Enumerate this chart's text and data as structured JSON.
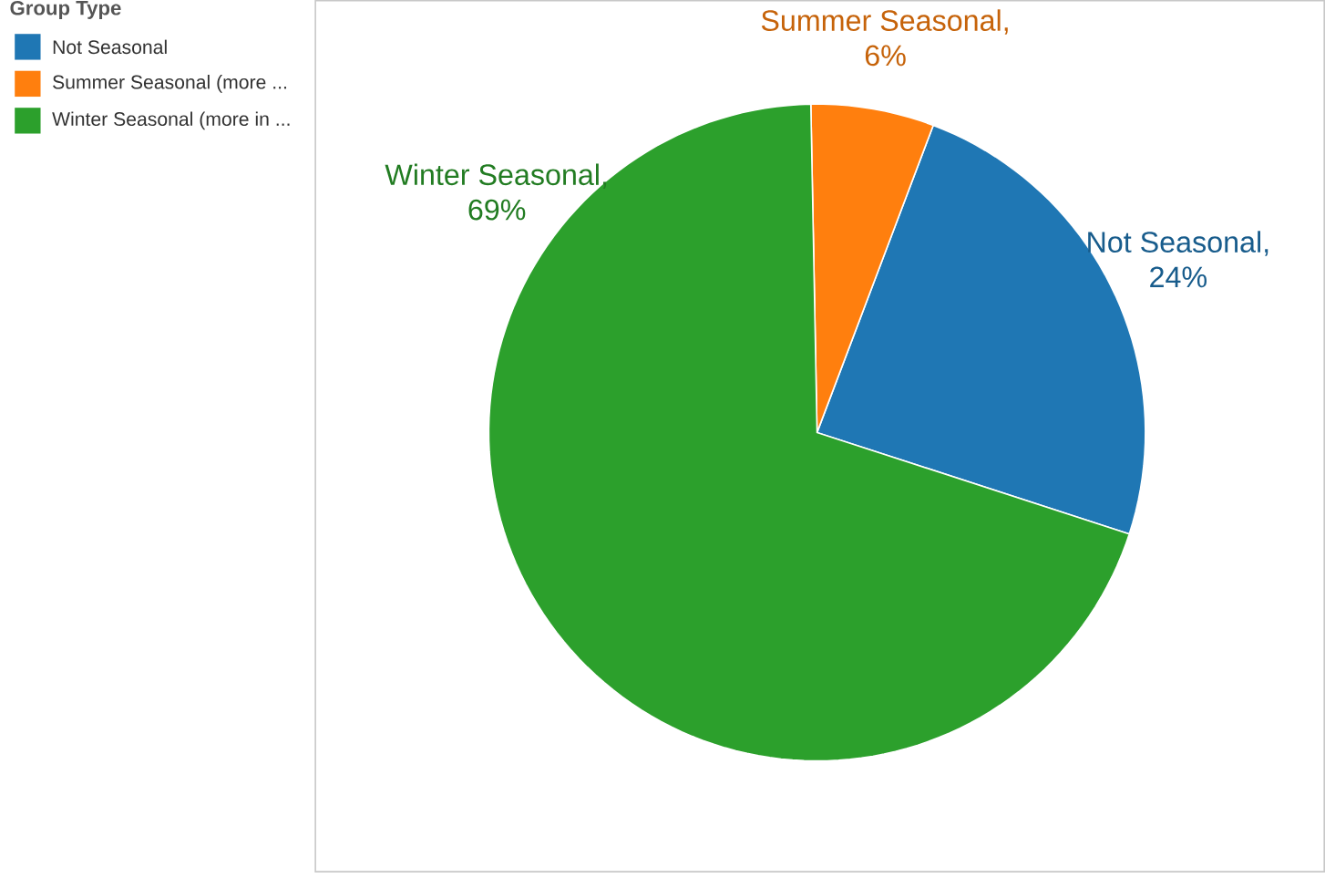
{
  "chart_data": {
    "type": "pie",
    "legend_title": "Group Type",
    "legend": "top left",
    "categories": [
      "Not Seasonal",
      "Summer Seasonal (more ...",
      "Winter Seasonal (more in ..."
    ],
    "values": [
      24,
      6,
      69
    ],
    "colors": [
      "#1f77b4",
      "#ff7f0e",
      "#2ca02c"
    ],
    "annotations": [
      "Not Seasonal,",
      "Summer Seasonal,",
      "Winter Seasonal,"
    ],
    "value_labels": [
      "24%",
      "6%",
      "69%"
    ]
  }
}
